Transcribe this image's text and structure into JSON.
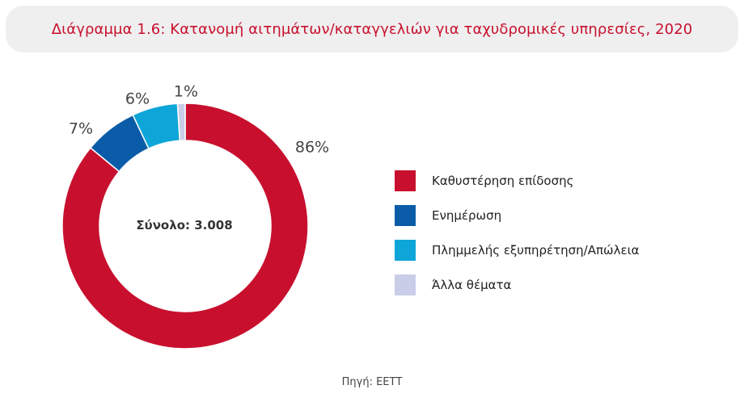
{
  "title": "Διάγραμμα 1.6: Κατανομή αιτημάτων/καταγγελιών για ταχυδρομικές υπηρεσίες, 2020",
  "source": "Πηγή: ΕΕΤΤ",
  "chart_data": {
    "type": "pie",
    "style": "donut",
    "center_label": "Σύνολο: 3.008",
    "legend_position": "right",
    "categories": [
      "Καθυστέρηση επίδοσης",
      "Ενημέρωση",
      "Πλημμελής εξυπηρέτηση/Απώλεια",
      "Άλλα θέματα"
    ],
    "values": [
      86,
      7,
      6,
      1
    ],
    "value_labels": [
      "86%",
      "7%",
      "6%",
      "1%"
    ],
    "colors": [
      "#c8102e",
      "#0a5ca8",
      "#0ea5d8",
      "#c9cde8"
    ]
  }
}
